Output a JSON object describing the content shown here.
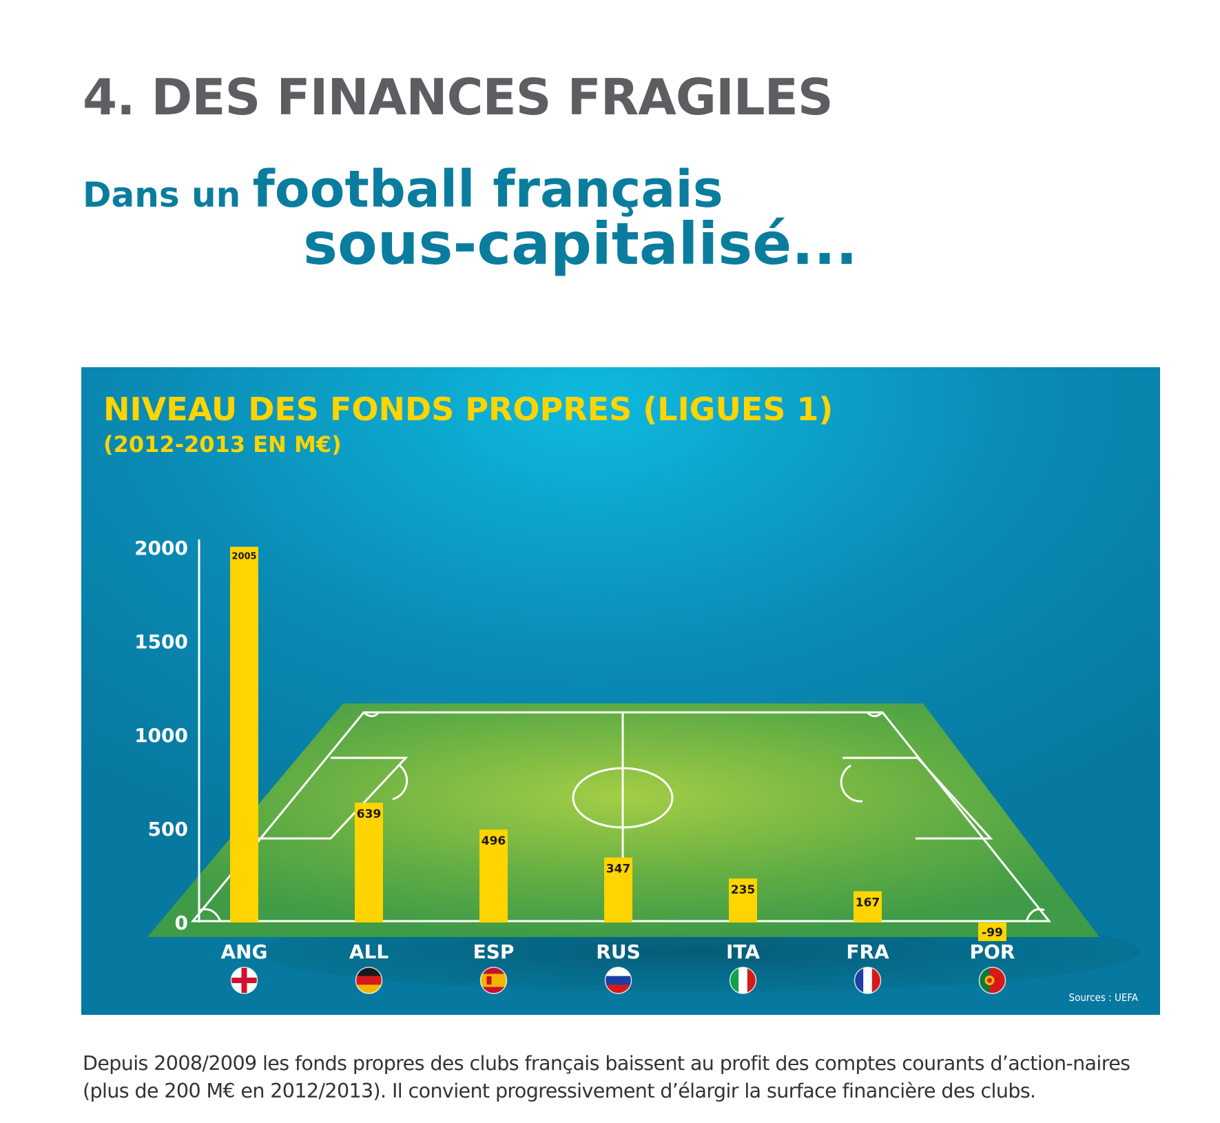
{
  "header": {
    "section_title": "4. DES FINANCES FRAGILES",
    "headline_part1": "Dans un ",
    "headline_part2": "football français",
    "headline_line2": "sous-capitalisé..."
  },
  "chart_data": {
    "type": "bar",
    "title": "NIVEAU DES FONDS PROPRES (LIGUES 1)",
    "subtitle": "(2012-2013 EN M€)",
    "categories": [
      "ANG",
      "ALL",
      "ESP",
      "RUS",
      "ITA",
      "FRA",
      "POR"
    ],
    "values": [
      2005,
      639,
      496,
      347,
      235,
      167,
      -99
    ],
    "value_labels": [
      "2005",
      "639",
      "496",
      "347",
      "235",
      "167",
      "-99"
    ],
    "yticks": [
      0,
      500,
      1000,
      1500,
      2000
    ],
    "ylim": [
      -150,
      2050
    ],
    "flags": [
      "england-flag",
      "germany-flag",
      "spain-flag",
      "russia-flag",
      "italy-flag",
      "france-flag",
      "portugal-flag"
    ],
    "bar_color": "#ffd400",
    "background_color": "#0a7fa8",
    "source": "Sources : UEFA"
  },
  "body": {
    "paragraph": "Depuis 2008/2009 les fonds propres des clubs français baissent au profit des comptes courants d’action-naires (plus de 200 M€ en 2012/2013). Il convient progressivement d’élargir la surface financière des clubs."
  }
}
